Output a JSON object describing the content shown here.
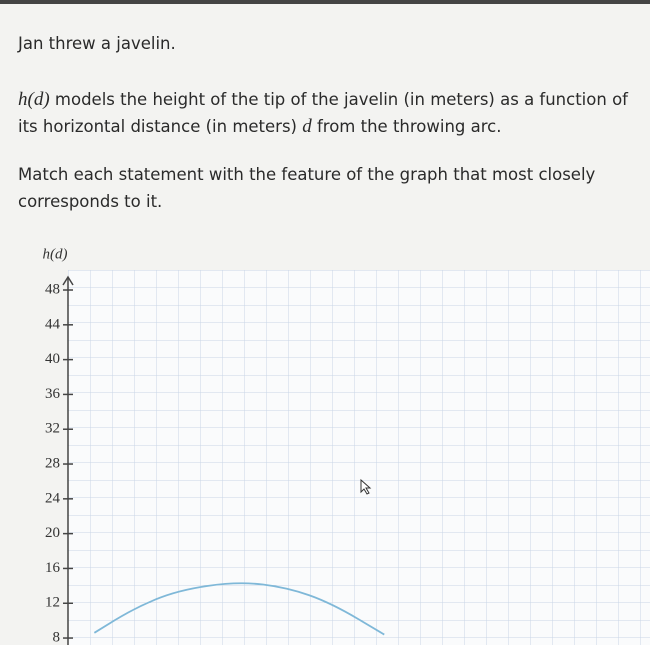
{
  "question": {
    "line_1": "Jan threw a javelin.",
    "line_2": [
      "h(d)",
      " models the height of the tip of the javelin (in meters) as a function of its horizontal distance (in meters) ",
      "d",
      " from the throwing arc."
    ],
    "line_3": "Match each statement with the feature of the graph that most closely corresponds to it."
  },
  "chart_data": {
    "type": "line",
    "y_label": "h(d)",
    "ylim": [
      7.2,
      50.3
    ],
    "yticks": [
      8,
      12,
      16,
      20,
      24,
      28,
      32,
      36,
      40,
      44,
      48
    ],
    "xlim": [
      0,
      26.5
    ],
    "x": [
      1.2,
      3,
      5,
      7.75,
      10,
      12,
      14.4
    ],
    "series": [
      {
        "color": "#7fb8d8",
        "values": [
          8.6,
          11.4,
          13.5,
          14.5,
          13.8,
          12.0,
          8.4
        ]
      }
    ]
  }
}
